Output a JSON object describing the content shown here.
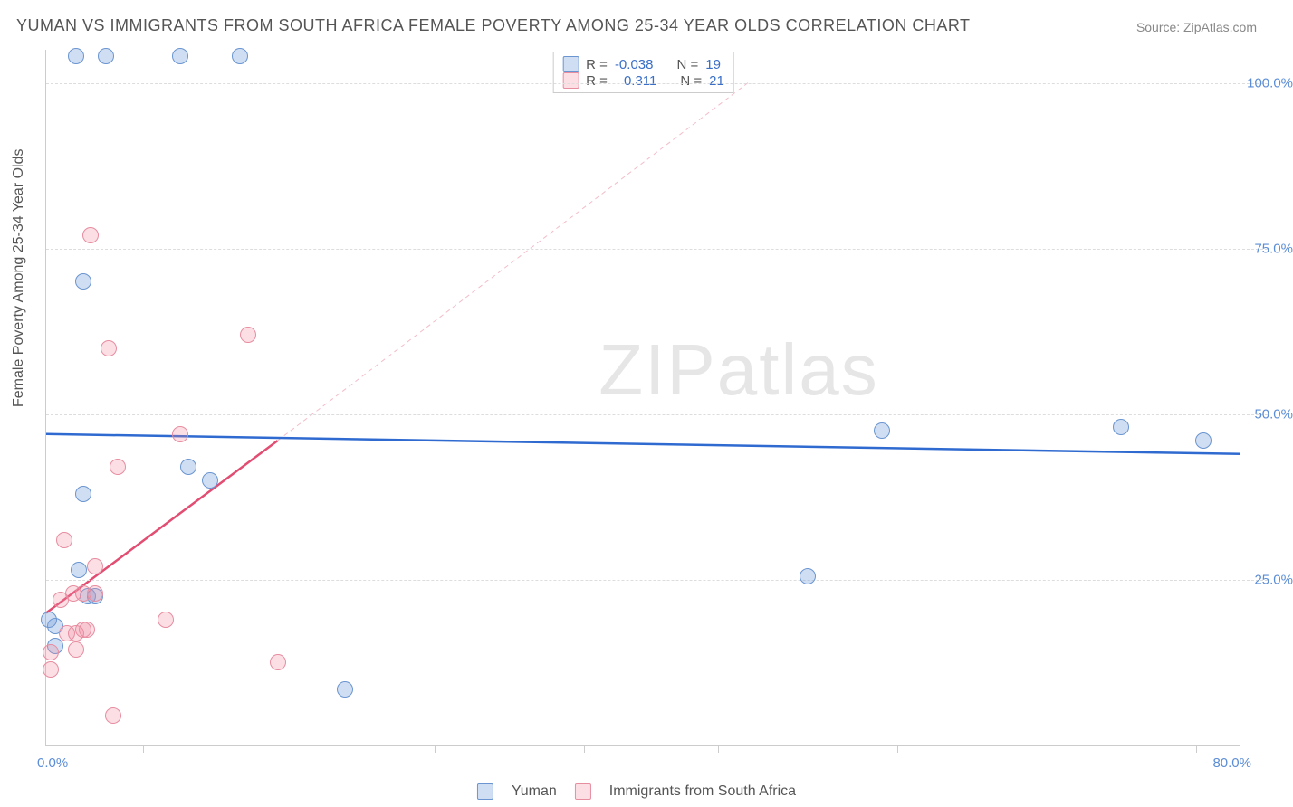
{
  "title": "YUMAN VS IMMIGRANTS FROM SOUTH AFRICA FEMALE POVERTY AMONG 25-34 YEAR OLDS CORRELATION CHART",
  "source": "Source: ZipAtlas.com",
  "ylabel": "Female Poverty Among 25-34 Year Olds",
  "watermark_a": "ZIP",
  "watermark_b": "atlas",
  "chart": {
    "type": "scatter",
    "xlim": [
      0,
      80
    ],
    "ylim": [
      0,
      105
    ],
    "x_min_label": "0.0%",
    "x_max_label": "80.0%",
    "y_ticks": [
      25,
      50,
      75,
      100
    ],
    "y_tick_labels": [
      "25.0%",
      "50.0%",
      "75.0%",
      "100.0%"
    ],
    "x_tick_positions": [
      6.5,
      19,
      26,
      36,
      45,
      57,
      77
    ],
    "grid_color": "#dddddd",
    "axis_color": "#cccccc",
    "background_color": "#ffffff",
    "label_color": "#5b8dd6",
    "title_color": "#555555",
    "marker_radius": 9,
    "series": [
      {
        "name": "Yuman",
        "label": "Yuman",
        "color_fill": "rgba(120,160,220,0.35)",
        "color_stroke": "#6a95d0",
        "r_label": "R =",
        "r_value": "-0.038",
        "n_label": "N =",
        "n_value": "19",
        "trend": {
          "x1": 0,
          "y1": 47,
          "x2": 80,
          "y2": 44,
          "stroke": "#2f6ad0",
          "width": 2.5,
          "dash": ""
        },
        "trend_ext": {
          "x1": 0,
          "y1": 47,
          "x2": 80,
          "y2": 44,
          "stroke": "#a9c2ea",
          "width": 1,
          "dash": "5 4"
        },
        "points": [
          [
            2,
            104
          ],
          [
            4,
            104
          ],
          [
            9,
            104
          ],
          [
            13,
            104
          ],
          [
            2.5,
            70
          ],
          [
            0.6,
            18
          ],
          [
            0.6,
            15
          ],
          [
            2.2,
            26.5
          ],
          [
            9.5,
            42
          ],
          [
            11,
            40
          ],
          [
            51,
            25.5
          ],
          [
            20,
            8.5
          ],
          [
            56,
            47.5
          ],
          [
            72,
            48
          ],
          [
            77.5,
            46
          ],
          [
            0.2,
            19
          ],
          [
            2.5,
            38
          ],
          [
            2.8,
            22.5
          ],
          [
            3.3,
            22.5
          ]
        ]
      },
      {
        "name": "Immigrants from South Africa",
        "label": "Immigrants from South Africa",
        "color_fill": "rgba(240,140,160,0.28)",
        "color_stroke": "#e78da0",
        "r_label": "R =",
        "r_value": "0.311",
        "n_label": "N =",
        "n_value": "21",
        "trend": {
          "x1": 0,
          "y1": 20,
          "x2": 15.5,
          "y2": 46,
          "stroke": "#e24d72",
          "width": 2.5,
          "dash": ""
        },
        "trend_ext": {
          "x1": 15.5,
          "y1": 46,
          "x2": 47,
          "y2": 100,
          "stroke": "#f3bcc8",
          "width": 1,
          "dash": "5 4"
        },
        "points": [
          [
            3,
            77
          ],
          [
            4.2,
            60
          ],
          [
            13.5,
            62
          ],
          [
            4.8,
            42
          ],
          [
            9,
            47
          ],
          [
            1.2,
            31
          ],
          [
            0.3,
            14
          ],
          [
            0.3,
            11.5
          ],
          [
            1,
            22
          ],
          [
            1.4,
            17
          ],
          [
            1.8,
            23
          ],
          [
            2,
            14.5
          ],
          [
            2,
            17
          ],
          [
            2.5,
            17.5
          ],
          [
            2.5,
            23
          ],
          [
            2.7,
            17.5
          ],
          [
            3.3,
            27
          ],
          [
            3.3,
            23
          ],
          [
            8,
            19
          ],
          [
            15.5,
            12.5
          ],
          [
            4.5,
            4.5
          ]
        ]
      }
    ]
  },
  "bottom_legend": {
    "a": "Yuman",
    "b": "Immigrants from South Africa"
  }
}
